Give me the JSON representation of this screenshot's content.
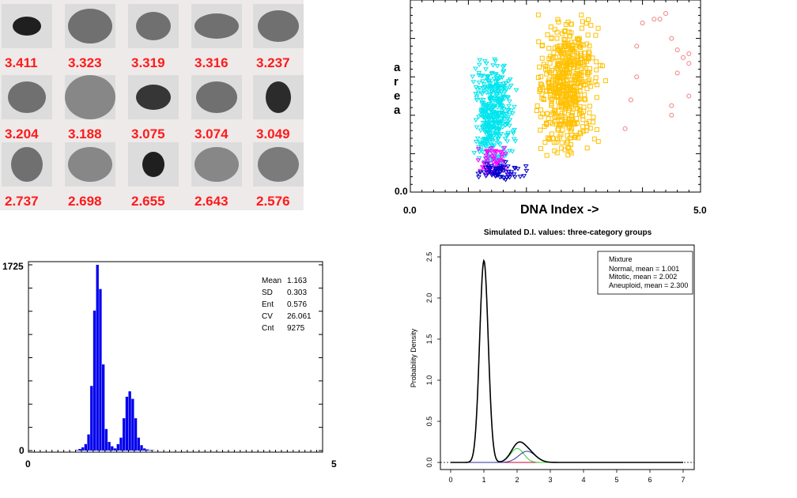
{
  "chart_data": [
    {
      "type": "table",
      "rows": [
        [
          "3.411",
          "3.323",
          "3.319",
          "3.316",
          "3.237"
        ],
        [
          "3.204",
          "3.188",
          "3.075",
          "3.074",
          "3.049"
        ],
        [
          "2.737",
          "2.698",
          "2.655",
          "2.643",
          "2.576"
        ]
      ],
      "colors": {
        "panel_bg": "#eeeaea",
        "label": "#ff1a1a",
        "cell_bg": "#dcdcdc"
      }
    },
    {
      "type": "scatter",
      "xlabel": "DNA  Index ->",
      "ylabel": [
        "a",
        "r",
        "e",
        "a"
      ],
      "xlim": [
        0,
        5
      ],
      "x_ticks": [
        "0.0",
        "5.0"
      ],
      "y_ticks": [
        "0.0"
      ],
      "series": [
        {
          "color": "#00e5ee",
          "marker": "triangle",
          "cluster": {
            "x": [
              1.0,
              1.9
            ],
            "y": [
              0.1,
              0.72
            ]
          }
        },
        {
          "color": "#ffc000",
          "marker": "square",
          "cluster": {
            "x": [
              2.0,
              3.4
            ],
            "y": [
              0.18,
              0.95
            ]
          }
        },
        {
          "color": "#ff00ff",
          "marker": "triangle",
          "cluster": {
            "x": [
              1.1,
              1.8
            ],
            "y": [
              0.06,
              0.25
            ]
          }
        },
        {
          "color": "#0000cc",
          "marker": "triangle",
          "cluster": {
            "x": [
              1.0,
              2.2
            ],
            "y": [
              0.05,
              0.16
            ]
          }
        },
        {
          "color": "#f08080",
          "marker": "circle",
          "points": [
            [
              4.0,
              0.88
            ],
            [
              4.2,
              0.9
            ],
            [
              4.3,
              0.9
            ],
            [
              4.4,
              0.93
            ],
            [
              4.5,
              0.8
            ],
            [
              4.6,
              0.74
            ],
            [
              4.7,
              0.7
            ],
            [
              4.8,
              0.72
            ],
            [
              4.8,
              0.67
            ],
            [
              4.6,
              0.62
            ],
            [
              4.5,
              0.45
            ],
            [
              4.5,
              0.4
            ],
            [
              3.9,
              0.6
            ],
            [
              3.8,
              0.48
            ],
            [
              3.7,
              0.33
            ],
            [
              3.9,
              0.76
            ],
            [
              4.8,
              0.5
            ]
          ]
        }
      ]
    },
    {
      "type": "bar",
      "title": "",
      "xlim": [
        0,
        5
      ],
      "ylim": [
        0,
        1725
      ],
      "y_ticks": [
        "1725",
        "0"
      ],
      "x_ticks": [
        "0",
        "5"
      ],
      "bin_width": 0.05,
      "bins_start": 0.8,
      "values": [
        5,
        15,
        30,
        60,
        150,
        600,
        1300,
        1725,
        1500,
        800,
        200,
        80,
        40,
        20,
        60,
        120,
        300,
        500,
        550,
        480,
        300,
        120,
        50,
        20,
        10,
        5,
        3
      ],
      "stats": [
        {
          "label": "Mean",
          "value": "1.163"
        },
        {
          "label": "SD",
          "value": "0.303"
        },
        {
          "label": "Ent",
          "value": "0.576"
        },
        {
          "label": "CV",
          "value": "26.061"
        },
        {
          "label": "Cnt",
          "value": "9275"
        }
      ],
      "colors": {
        "bar": "#0000ee"
      }
    },
    {
      "type": "line",
      "title": "Simulated D.I. values: three-category groups",
      "ylabel": "Probability Density",
      "xlim": [
        0,
        7
      ],
      "ylim": [
        0,
        2.5
      ],
      "x_ticks": [
        0,
        1,
        2,
        3,
        4,
        5,
        6,
        7
      ],
      "y_ticks": [
        0.0,
        0.5,
        1.0,
        1.5,
        2.0,
        2.5
      ],
      "legend": {
        "title": "Mixture",
        "entries": [
          {
            "label": "Normal, mean = 1.001",
            "color": "#cc0033"
          },
          {
            "label": "Mitotic,  mean = 2.002",
            "color": "#33cc33"
          },
          {
            "label": "Aneuploid, mean = 2.300",
            "color": "#333399"
          }
        ]
      },
      "series": [
        {
          "name": "Mixture",
          "color": "#000000",
          "components": [
            [
              1.001,
              0.13,
              0.8
            ],
            [
              2.002,
              0.2,
              0.085
            ],
            [
              2.3,
              0.25,
              0.085
            ]
          ]
        },
        {
          "name": "Normal",
          "color": "#cc0033",
          "components": [
            [
              1.001,
              0.13,
              0.8
            ]
          ]
        },
        {
          "name": "Mitotic",
          "color": "#33cc33",
          "components": [
            [
              2.002,
              0.2,
              0.085
            ]
          ]
        },
        {
          "name": "Aneuploid",
          "color": "#333399",
          "components": [
            [
              2.3,
              0.25,
              0.085
            ]
          ]
        }
      ]
    }
  ]
}
